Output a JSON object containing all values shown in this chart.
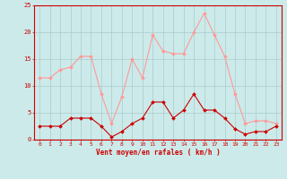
{
  "xlabel": "Vent moyen/en rafales ( km/h )",
  "hours": [
    0,
    1,
    2,
    3,
    4,
    5,
    6,
    7,
    8,
    9,
    10,
    11,
    12,
    13,
    14,
    15,
    16,
    17,
    18,
    19,
    20,
    21,
    22,
    23
  ],
  "wind_avg": [
    2.5,
    2.5,
    2.5,
    4,
    4,
    4,
    2.5,
    0.5,
    1.5,
    3,
    4,
    7,
    7,
    4,
    5.5,
    8.5,
    5.5,
    5.5,
    4,
    2,
    1,
    1.5,
    1.5,
    2.5
  ],
  "wind_gust": [
    11.5,
    11.5,
    13,
    13.5,
    15.5,
    15.5,
    8.5,
    3,
    8,
    15,
    11.5,
    19.5,
    16.5,
    16,
    16,
    20,
    23.5,
    19.5,
    15.5,
    8.5,
    3,
    3.5,
    3.5,
    3
  ],
  "wind_avg_color": "#cc0000",
  "wind_gust_color": "#ff9999",
  "bg_color": "#cceaea",
  "grid_color": "#aacccc",
  "axis_color": "#cc0000",
  "ylim": [
    0,
    25
  ],
  "yticks": [
    0,
    5,
    10,
    15,
    20,
    25
  ]
}
